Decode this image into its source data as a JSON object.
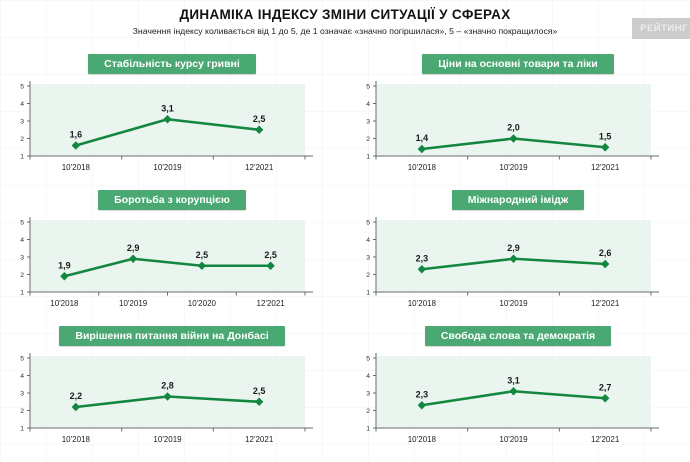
{
  "header": {
    "title": "ДИНАМІКА ІНДЕКСУ ЗМІНИ СИТУАЦІЇ У СФЕРАХ",
    "subtitle": "Значення індексу коливається від 1 до 5, де 1 означає «значно погіршилася», 5 – «значно покращилося»"
  },
  "watermark": {
    "text": "РЕЙТИНГ"
  },
  "colors": {
    "header_pill_bg": "#4aa873",
    "header_pill_text": "#ffffff",
    "line": "#13873f",
    "marker": "#13873f",
    "plot_bg": "#e9f5ee",
    "axis": "#6b6b6b",
    "tick_label": "#333333",
    "data_label": "#1b1b1b"
  },
  "chart_data": [
    {
      "type": "line",
      "title": "Стабільність курсу гривні",
      "categories": [
        "10'2018",
        "10'2019",
        "12'2021"
      ],
      "values": [
        1.6,
        3.1,
        2.5
      ],
      "labels": [
        "1,6",
        "3,1",
        "2,5"
      ],
      "ylim": [
        1,
        5
      ],
      "yticks": [
        1,
        2,
        3,
        4,
        5
      ],
      "grid": false,
      "legend": "none"
    },
    {
      "type": "line",
      "title": "Ціни на основні товари та ліки",
      "categories": [
        "10'2018",
        "10'2019",
        "12'2021"
      ],
      "values": [
        1.4,
        2.0,
        1.5
      ],
      "labels": [
        "1,4",
        "2,0",
        "1,5"
      ],
      "ylim": [
        1,
        5
      ],
      "yticks": [
        1,
        2,
        3,
        4,
        5
      ],
      "grid": false,
      "legend": "none"
    },
    {
      "type": "line",
      "title": "Боротьба з корупцією",
      "categories": [
        "10'2018",
        "10'2019",
        "10'2020",
        "12'2021"
      ],
      "values": [
        1.9,
        2.9,
        2.5,
        2.5
      ],
      "labels": [
        "1,9",
        "2,9",
        "2,5",
        "2,5"
      ],
      "ylim": [
        1,
        5
      ],
      "yticks": [
        1,
        2,
        3,
        4,
        5
      ],
      "grid": false,
      "legend": "none"
    },
    {
      "type": "line",
      "title": "Міжнародний імідж",
      "categories": [
        "10'2018",
        "10'2019",
        "12'2021"
      ],
      "values": [
        2.3,
        2.9,
        2.6
      ],
      "labels": [
        "2,3",
        "2,9",
        "2,6"
      ],
      "ylim": [
        1,
        5
      ],
      "yticks": [
        1,
        2,
        3,
        4,
        5
      ],
      "grid": false,
      "legend": "none"
    },
    {
      "type": "line",
      "title": "Вирішення питання війни на Донбасі",
      "categories": [
        "10'2018",
        "10'2019",
        "12'2021"
      ],
      "values": [
        2.2,
        2.8,
        2.5
      ],
      "labels": [
        "2,2",
        "2,8",
        "2,5"
      ],
      "ylim": [
        1,
        5
      ],
      "yticks": [
        1,
        2,
        3,
        4,
        5
      ],
      "grid": false,
      "legend": "none"
    },
    {
      "type": "line",
      "title": "Свобода слова та демократія",
      "categories": [
        "10'2018",
        "10'2019",
        "12'2021"
      ],
      "values": [
        2.3,
        3.1,
        2.7
      ],
      "labels": [
        "2,3",
        "3,1",
        "2,7"
      ],
      "ylim": [
        1,
        5
      ],
      "yticks": [
        1,
        2,
        3,
        4,
        5
      ],
      "grid": false,
      "legend": "none"
    }
  ]
}
